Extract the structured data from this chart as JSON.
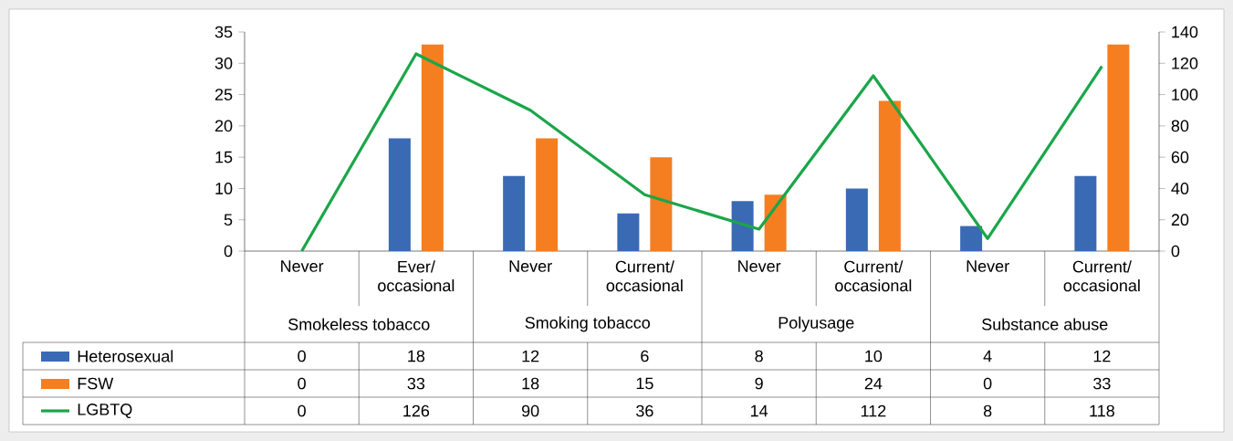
{
  "chart_data": {
    "type": "bar",
    "categories": [
      "Never",
      "Ever/ occasional",
      "Never",
      "Current/ occasional",
      "Never",
      "Current/ occasional",
      "Never",
      "Current/ occasional"
    ],
    "series": [
      {
        "name": "Heterosexual",
        "color": "#3a6ab4",
        "values": [
          0,
          18,
          12,
          6,
          8,
          10,
          4,
          12
        ]
      },
      {
        "name": "FSW",
        "color": "#f47e20",
        "values": [
          0,
          33,
          18,
          15,
          9,
          24,
          0,
          33
        ]
      },
      {
        "name": "LGBTQ",
        "color": "#1aa64a",
        "type": "line",
        "axis": "y2",
        "values": [
          0,
          126,
          90,
          36,
          14,
          112,
          8,
          118
        ]
      }
    ],
    "annotations": [
      "Smokeless tobacco",
      "Smoking tobacco",
      "Polyusage",
      "Substance abuse"
    ],
    "ylim": [
      0,
      35
    ],
    "yticks": [
      0,
      5,
      10,
      15,
      20,
      25,
      30,
      35
    ],
    "y2lim": [
      0,
      140
    ],
    "y2ticks": [
      0,
      20,
      40,
      60,
      80,
      100,
      120,
      140
    ],
    "data_labels": true,
    "legend": "bottom left",
    "grid": false
  }
}
